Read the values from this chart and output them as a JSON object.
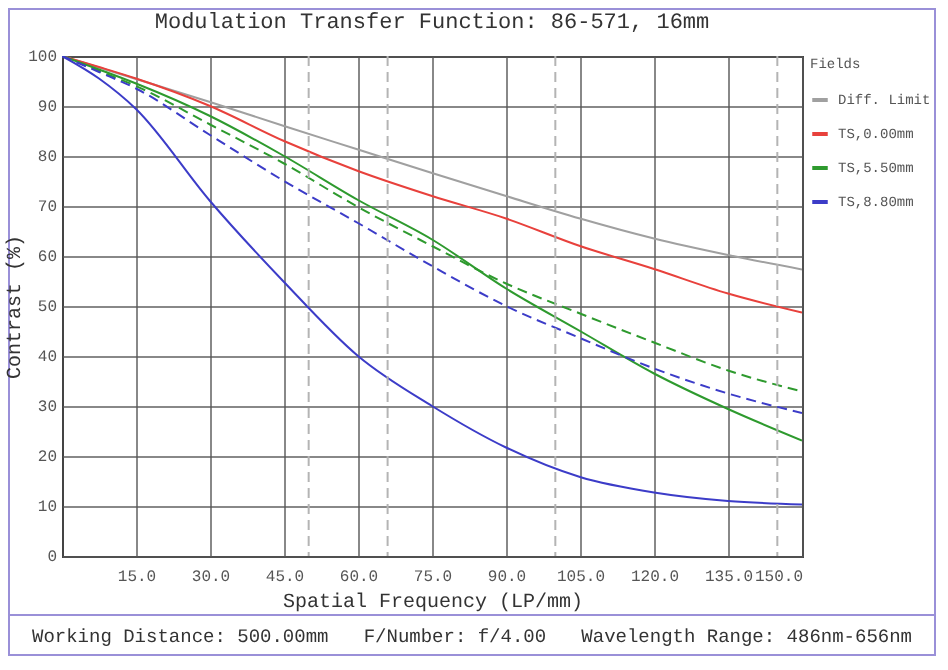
{
  "chart_data": {
    "type": "line",
    "title": "Modulation Transfer Function: 86-571, 16mm",
    "xlabel": "Spatial Frequency (LP/mm)",
    "ylabel": "Contrast (%)",
    "legend_title": "Fields",
    "annotations": [
      "Working Distance: 500.00mm",
      "F/Number: f/4.00",
      "Wavelength Range: 486nm-656nm"
    ],
    "x": [
      0,
      7.5,
      15,
      30,
      45,
      60,
      75,
      90,
      105,
      120,
      135,
      150
    ],
    "series": [
      {
        "name": "Diff. Limit",
        "color": "#a0a0a0",
        "values": [
          100,
          97.7,
          95.4,
          90.8,
          86,
          81.3,
          76.6,
          72,
          67.5,
          63.5,
          60.2,
          57.3
        ]
      },
      {
        "name": "TS,0.00mm",
        "color": "#e8413c",
        "values": [
          100,
          97.8,
          95.5,
          90,
          83,
          77,
          72,
          67.5,
          62,
          57.4,
          52.5,
          48.7
        ]
      },
      {
        "name": "TS,5.50mm",
        "color": "#2e9a2e",
        "values": [
          100,
          97.3,
          94.5,
          88,
          80,
          71.2,
          63.3,
          53.5,
          45,
          36.5,
          29.4,
          23.1
        ]
      },
      {
        "color": "#2e9a2e",
        "line_style": "dashed",
        "values": [
          100,
          97,
          94,
          86.3,
          78.5,
          69.8,
          62,
          54.5,
          48.5,
          42.7,
          37.1,
          32.9
        ]
      },
      {
        "name": "TS,8.80mm",
        "color": "#3c3cc8",
        "values": [
          100,
          95.5,
          89.4,
          71,
          54.8,
          40,
          30,
          21.7,
          15.8,
          12.7,
          11,
          10.3
        ]
      },
      {
        "color": "#3c3cc8",
        "line_style": "dashed",
        "values": [
          100,
          96.8,
          93.5,
          84.2,
          75,
          66.6,
          58,
          50,
          43.6,
          37.5,
          32.5,
          28.6
        ]
      }
    ],
    "ref_lines": [
      {
        "axis": "x",
        "value": 50,
        "color": "#b4b4b4",
        "line_style": "dashed"
      },
      {
        "axis": "x",
        "value": 66,
        "color": "#b4b4b4",
        "line_style": "dashed"
      },
      {
        "axis": "x",
        "value": 100,
        "color": "#b4b4b4",
        "line_style": "dashed"
      },
      {
        "axis": "x",
        "value": 145,
        "color": "#b4b4b4",
        "line_style": "dashed"
      }
    ],
    "xlim": [
      0,
      150
    ],
    "xticks": [
      {
        "value": 15,
        "label": "15.0"
      },
      {
        "value": 30,
        "label": "30.0"
      },
      {
        "value": 45,
        "label": "45.0"
      },
      {
        "value": 60,
        "label": "60.0"
      },
      {
        "value": 75,
        "label": "75.0"
      },
      {
        "value": 90,
        "label": "90.0"
      },
      {
        "value": 105,
        "label": "105.0"
      },
      {
        "value": 120,
        "label": "120.0"
      },
      {
        "value": 135,
        "label": "135.0"
      },
      {
        "value": 150,
        "label": "150.0"
      }
    ],
    "ylim": [
      0,
      100
    ],
    "yticks": [
      0,
      10,
      20,
      30,
      40,
      50,
      60,
      70,
      80,
      90,
      100
    ],
    "grid": true,
    "legend": "right",
    "marker": "none",
    "line_style": "solid"
  }
}
